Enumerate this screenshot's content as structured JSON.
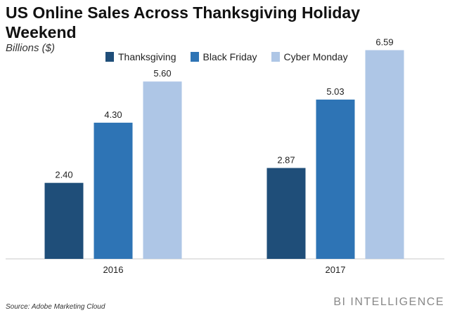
{
  "header": {
    "title": "US Online Sales Across Thanksgiving Holiday Weekend",
    "subtitle": "Billions ($)"
  },
  "footer": {
    "source": "Source: Adobe Marketing Cloud",
    "brand": "BI INTELLIGENCE"
  },
  "chart_data": {
    "type": "bar",
    "title": "US Online Sales Across Thanksgiving Holiday Weekend",
    "ylabel": "Billions ($)",
    "categories": [
      "2016",
      "2017"
    ],
    "series": [
      {
        "name": "Thanksgiving",
        "values": [
          2.4,
          2.87
        ],
        "color": "#1f4e79"
      },
      {
        "name": "Black Friday",
        "values": [
          4.3,
          5.03
        ],
        "color": "#2e74b5"
      },
      {
        "name": "Cyber Monday",
        "values": [
          5.6,
          6.59
        ],
        "color": "#aec6e6"
      }
    ],
    "ylim": [
      0,
      7
    ],
    "grid": false,
    "legend": "top",
    "value_labels": true
  }
}
